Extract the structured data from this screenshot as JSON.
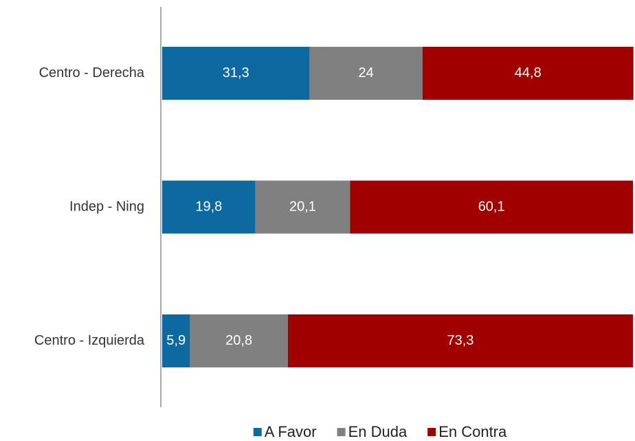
{
  "chart_data": {
    "type": "stacked_bar_horizontal",
    "categories": [
      "Centro - Derecha",
      "Indep - Ning",
      "Centro - Izquierda"
    ],
    "series": [
      {
        "name": "A Favor",
        "color": "#0e69a0",
        "values": [
          31.3,
          19.8,
          5.9
        ],
        "value_labels": [
          "31,3",
          "19,8",
          "5,9"
        ]
      },
      {
        "name": "En Duda",
        "color": "#808080",
        "values": [
          24,
          20.1,
          20.8
        ],
        "value_labels": [
          "24",
          "20,1",
          "20,8"
        ]
      },
      {
        "name": "En Contra",
        "color": "#a00000",
        "values": [
          44.8,
          60.1,
          73.3
        ],
        "value_labels": [
          "44,8",
          "60,1",
          "73,3"
        ]
      }
    ],
    "xlim": [
      0,
      100
    ],
    "legend": "bottom"
  }
}
